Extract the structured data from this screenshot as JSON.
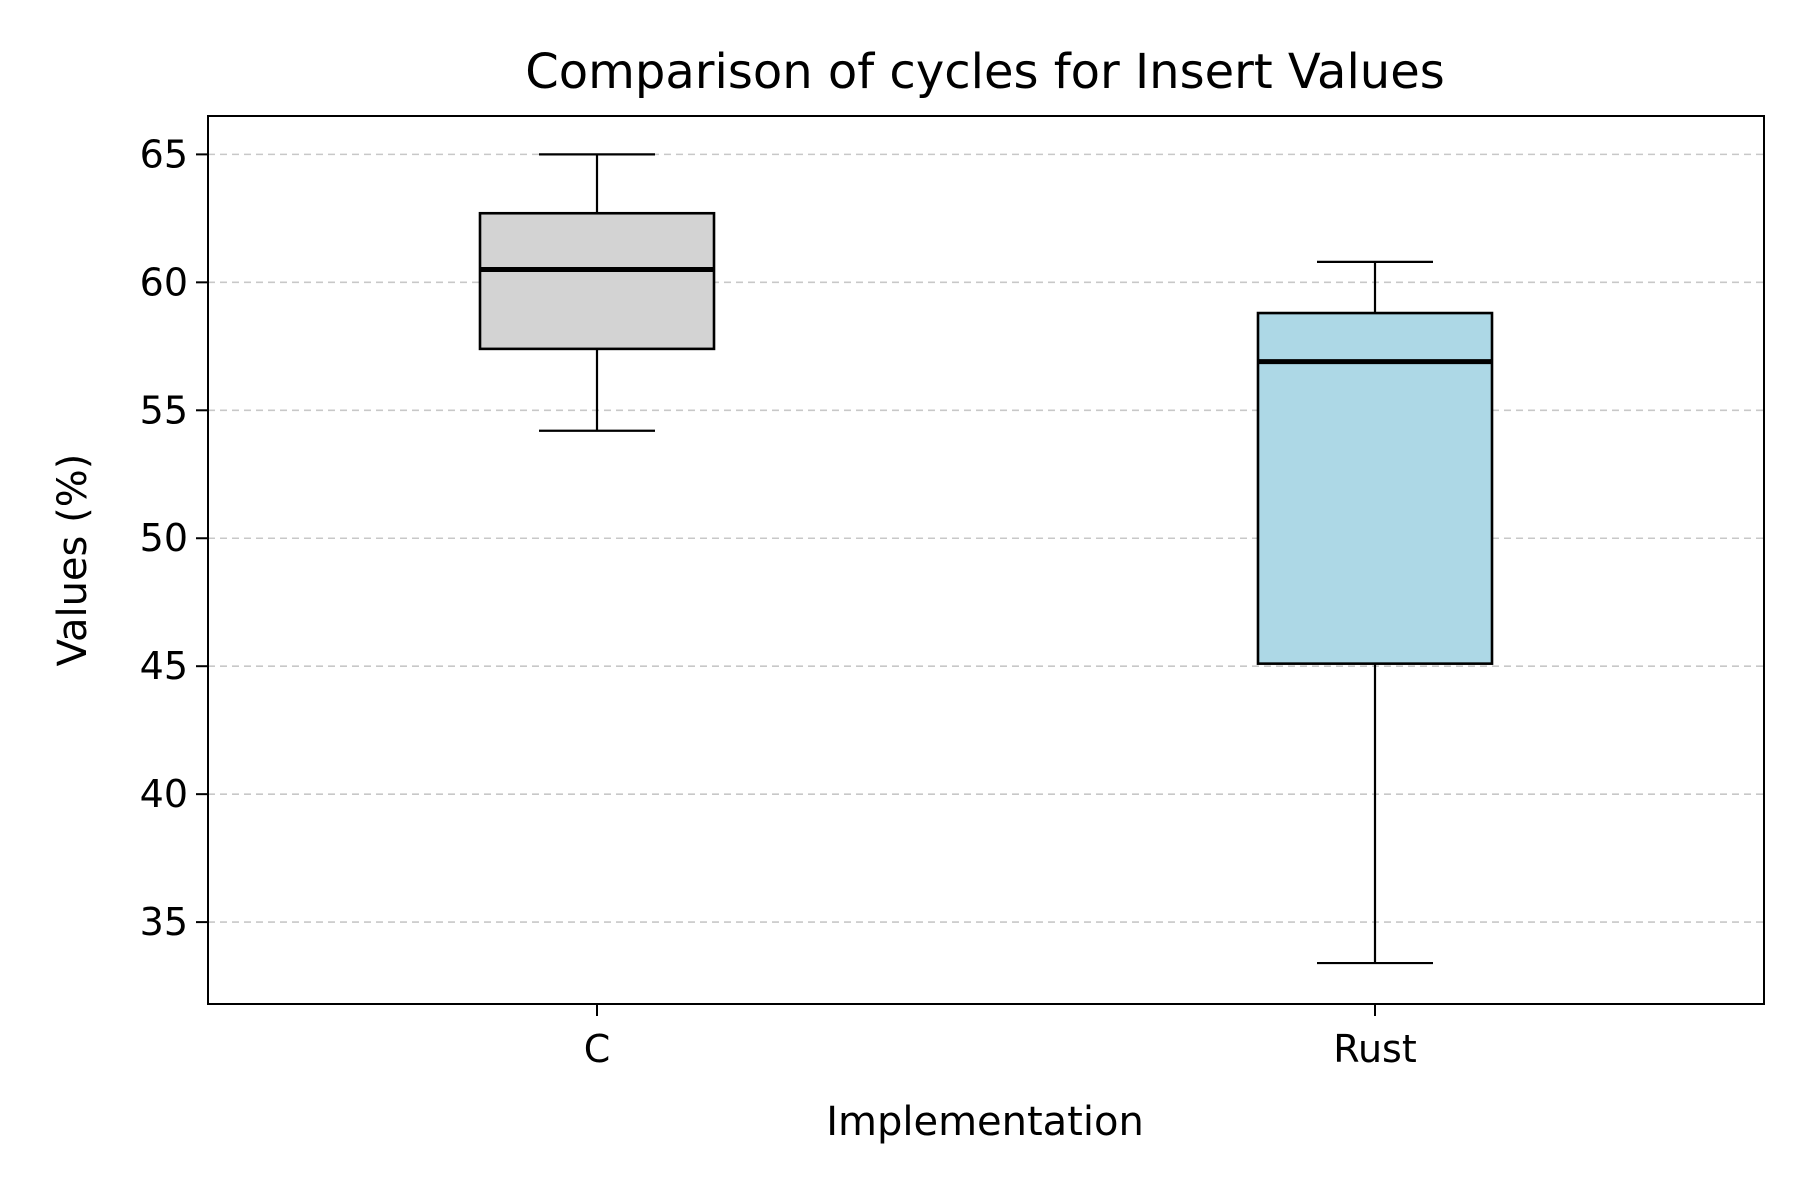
{
  "chart_data": {
    "type": "box",
    "title": "Comparison of cycles for Insert Values",
    "xlabel": "Implementation",
    "ylabel": "Values (%)",
    "ylim": [
      31.8,
      66.5
    ],
    "yticks": [
      35,
      40,
      45,
      50,
      55,
      60,
      65
    ],
    "grid": "y-dashed",
    "categories": [
      "C",
      "Rust"
    ],
    "boxes": [
      {
        "category": "C",
        "whisker_low": 54.2,
        "q1": 57.4,
        "median": 60.5,
        "q3": 62.7,
        "whisker_high": 65.0,
        "fill": "#d3d3d3"
      },
      {
        "category": "Rust",
        "whisker_low": 33.4,
        "q1": 45.1,
        "median": 56.9,
        "q3": 58.8,
        "whisker_high": 60.8,
        "fill": "#add8e6"
      }
    ]
  }
}
